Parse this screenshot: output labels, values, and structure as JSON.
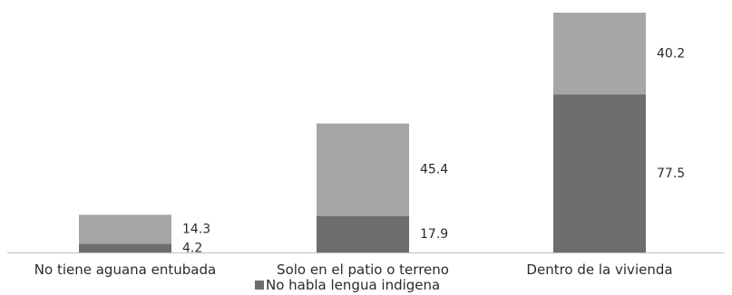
{
  "chart_data": {
    "type": "bar",
    "stacked": true,
    "categories": [
      "No tiene aguana entubada",
      "Solo en el patio o terreno",
      "Dentro de la vivienda"
    ],
    "series": [
      {
        "name": "No habla lengua indigena",
        "values": [
          4.2,
          17.9,
          77.5
        ],
        "color": "#6e6e6e"
      },
      {
        "values": [
          14.3,
          45.4,
          40.2
        ],
        "color": "#a6a6a6"
      }
    ],
    "value_labels": [
      [
        "4.2",
        "17.9",
        "77.5"
      ],
      [
        "14.3",
        "45.4",
        "40.2"
      ]
    ],
    "ylim": [
      0,
      117.7
    ],
    "grid": false,
    "legend": {
      "position": "bottom-center",
      "entries": [
        "No habla lengua indigena"
      ]
    },
    "axis_line_color": "#bfbfbf"
  }
}
